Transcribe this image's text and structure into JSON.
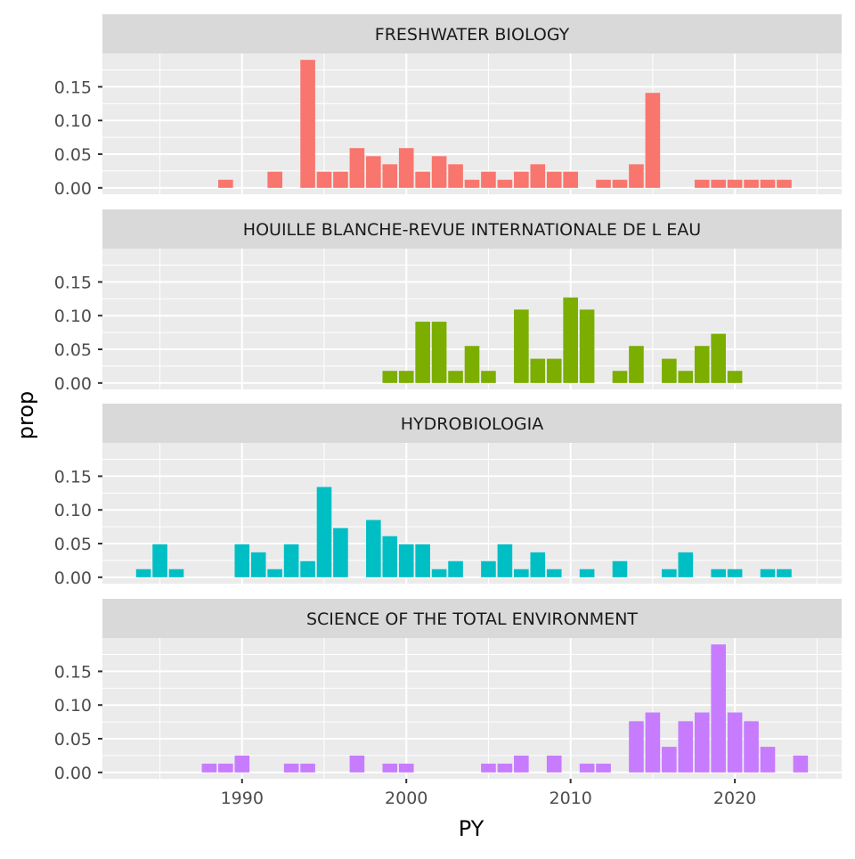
{
  "chart_data": {
    "type": "bar",
    "xlabel": "PY",
    "ylabel": "prop",
    "xlim": [
      1981.5,
      2026.5
    ],
    "ylim": [
      -0.0095,
      0.1995
    ],
    "x_ticks": [
      1990,
      2000,
      2010,
      2020
    ],
    "y_ticks": [
      "0.00",
      "0.05",
      "0.10",
      "0.15"
    ],
    "grid": true,
    "facet_direction": "vertical",
    "facets": [
      {
        "label": "FRESHWATER BIOLOGY",
        "color": "#F8766D",
        "x": [
          1989,
          1992,
          1994,
          1995,
          1996,
          1997,
          1998,
          1999,
          2000,
          2001,
          2002,
          2003,
          2004,
          2005,
          2006,
          2007,
          2008,
          2009,
          2010,
          2012,
          2013,
          2014,
          2015,
          2018,
          2019,
          2020,
          2021,
          2022,
          2023
        ],
        "y": [
          0.012,
          0.024,
          0.19,
          0.024,
          0.024,
          0.059,
          0.047,
          0.035,
          0.059,
          0.024,
          0.047,
          0.035,
          0.012,
          0.024,
          0.012,
          0.024,
          0.035,
          0.024,
          0.024,
          0.012,
          0.012,
          0.035,
          0.141,
          0.012,
          0.012,
          0.012,
          0.012,
          0.012,
          0.012
        ]
      },
      {
        "label": "HOUILLE BLANCHE-REVUE INTERNATIONALE DE L EAU",
        "color": "#7CAE00",
        "x": [
          1999,
          2000,
          2001,
          2002,
          2003,
          2004,
          2005,
          2007,
          2008,
          2009,
          2010,
          2011,
          2013,
          2014,
          2016,
          2017,
          2018,
          2019,
          2020
        ],
        "y": [
          0.018,
          0.018,
          0.091,
          0.091,
          0.018,
          0.055,
          0.018,
          0.109,
          0.036,
          0.036,
          0.127,
          0.109,
          0.018,
          0.055,
          0.036,
          0.018,
          0.055,
          0.073,
          0.018
        ]
      },
      {
        "label": "HYDROBIOLOGIA",
        "color": "#00BFC4",
        "x": [
          1984,
          1985,
          1986,
          1990,
          1991,
          1992,
          1993,
          1994,
          1995,
          1996,
          1998,
          1999,
          2000,
          2001,
          2002,
          2003,
          2005,
          2006,
          2007,
          2008,
          2009,
          2011,
          2013,
          2016,
          2017,
          2019,
          2020,
          2022,
          2023
        ],
        "y": [
          0.012,
          0.049,
          0.012,
          0.049,
          0.037,
          0.012,
          0.049,
          0.024,
          0.134,
          0.073,
          0.085,
          0.061,
          0.049,
          0.049,
          0.012,
          0.024,
          0.024,
          0.049,
          0.012,
          0.037,
          0.012,
          0.012,
          0.024,
          0.012,
          0.037,
          0.012,
          0.012,
          0.012,
          0.012
        ]
      },
      {
        "label": "SCIENCE OF THE TOTAL ENVIRONMENT",
        "color": "#C77CFF",
        "x": [
          1988,
          1989,
          1990,
          1993,
          1994,
          1997,
          1999,
          2000,
          2005,
          2006,
          2007,
          2009,
          2011,
          2012,
          2014,
          2015,
          2016,
          2017,
          2018,
          2019,
          2020,
          2021,
          2022,
          2024
        ],
        "y": [
          0.013,
          0.013,
          0.025,
          0.013,
          0.013,
          0.025,
          0.013,
          0.013,
          0.013,
          0.013,
          0.025,
          0.025,
          0.013,
          0.013,
          0.076,
          0.089,
          0.038,
          0.076,
          0.089,
          0.19,
          0.089,
          0.076,
          0.038,
          0.025
        ]
      }
    ]
  }
}
